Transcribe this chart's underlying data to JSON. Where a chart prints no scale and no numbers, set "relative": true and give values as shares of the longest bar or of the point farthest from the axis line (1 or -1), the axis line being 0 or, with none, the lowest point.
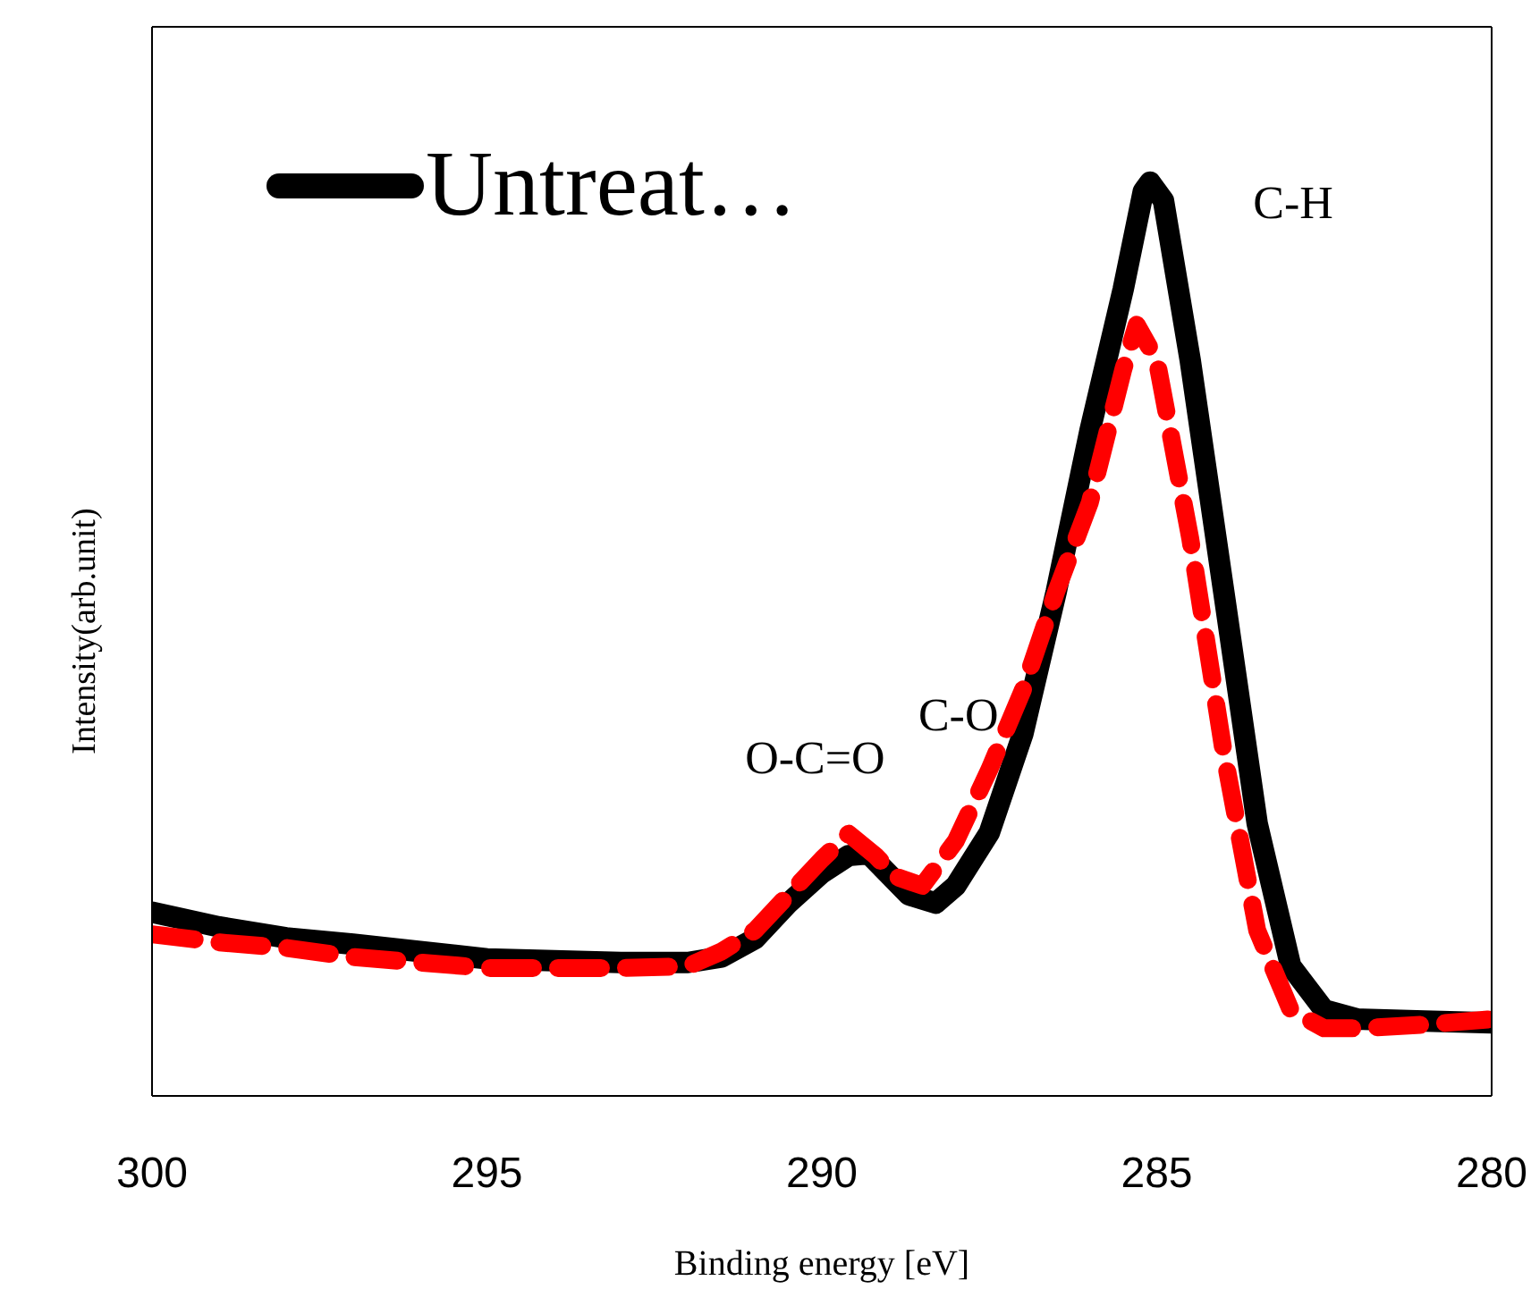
{
  "chart_data": {
    "type": "line",
    "relative": true,
    "xlabel": "Binding energy [eV]",
    "ylabel": "Intensity(arb.unit)",
    "xlim": [
      300,
      280
    ],
    "xticks": [
      300,
      295,
      290,
      285,
      280
    ],
    "legend": "top left",
    "grid": false,
    "annotations": [
      {
        "text": "C-H",
        "x": 285.1,
        "y": 1.0
      },
      {
        "text": "C-O",
        "x": 287.0,
        "y": 0.396
      },
      {
        "text": "O-C=O",
        "x": 289.3,
        "y": 0.265
      }
    ],
    "series": [
      {
        "name": "Untreat…",
        "color": "#000000",
        "line_style": "solid",
        "x": [
          300,
          299,
          298,
          297,
          296,
          295,
          294,
          293,
          292,
          291.5,
          291,
          290.5,
          290,
          289.6,
          289.3,
          288.7,
          288.3,
          288,
          287.5,
          287,
          286.5,
          286,
          285.5,
          285.2,
          285.1,
          284.9,
          284.5,
          284,
          283.5,
          283,
          282.5,
          282,
          281,
          280
        ],
        "values": [
          0.201,
          0.185,
          0.173,
          0.166,
          0.158,
          0.15,
          0.148,
          0.146,
          0.146,
          0.152,
          0.172,
          0.211,
          0.244,
          0.263,
          0.265,
          0.22,
          0.211,
          0.23,
          0.288,
          0.396,
          0.552,
          0.727,
          0.883,
          0.99,
          1.0,
          0.98,
          0.805,
          0.552,
          0.298,
          0.142,
          0.094,
          0.084,
          0.082,
          0.08
        ]
      },
      {
        "color": "#ff0000",
        "line_style": "dashed",
        "x": [
          300,
          299,
          298,
          297,
          296,
          295,
          294,
          293,
          292,
          291.5,
          291,
          290.5,
          290,
          289.6,
          289.2,
          288.9,
          288.5,
          288,
          287.5,
          287,
          286.5,
          286,
          285.5,
          285.3,
          285,
          284.5,
          284,
          283.5,
          283,
          282.5,
          282,
          281,
          280
        ],
        "values": [
          0.177,
          0.168,
          0.162,
          0.152,
          0.146,
          0.14,
          0.14,
          0.14,
          0.142,
          0.158,
          0.181,
          0.22,
          0.259,
          0.287,
          0.263,
          0.24,
          0.23,
          0.279,
          0.357,
          0.444,
          0.552,
          0.649,
          0.795,
          0.844,
          0.805,
          0.61,
          0.376,
          0.181,
          0.094,
          0.074,
          0.074,
          0.078,
          0.084
        ]
      }
    ]
  }
}
